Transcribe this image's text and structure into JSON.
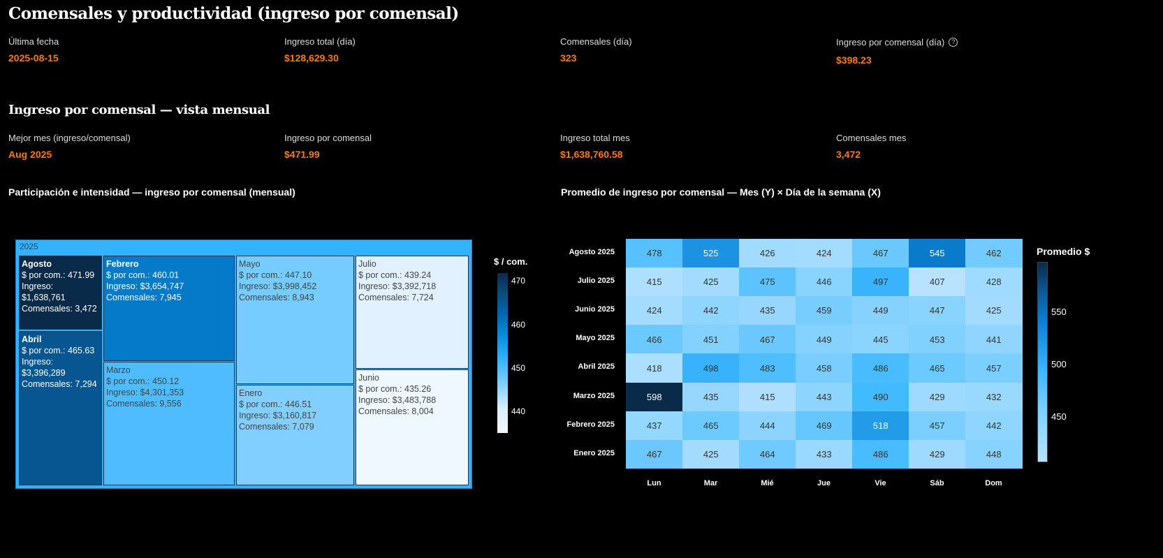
{
  "title": "Comensales y productividad (ingreso por comensal)",
  "kpis_day": [
    {
      "label": "Última fecha",
      "value": "2025-08-15"
    },
    {
      "label": "Ingreso total (día)",
      "value": "$128,629.30"
    },
    {
      "label": "Comensales (día)",
      "value": "323"
    },
    {
      "label": "Ingreso por comensal (día)",
      "value": "$398.23",
      "help": "?"
    }
  ],
  "section_title": "Ingreso por comensal — vista mensual",
  "kpis_month": [
    {
      "label": "Mejor mes (ingreso/comensal)",
      "value": "Aug 2025"
    },
    {
      "label": "Ingreso por comensal",
      "value": "$471.99"
    },
    {
      "label": "Ingreso total mes",
      "value": "$1,638,760.58"
    },
    {
      "label": "Comensales mes",
      "value": "3,472"
    }
  ],
  "colors": {
    "accent": "#ff7a00"
  },
  "chart_data": [
    {
      "type": "treemap",
      "title": "Participación e intensidad — ingreso por comensal (mensual)",
      "root": "2025",
      "colorbar_title": "$ / com.",
      "colorbar_ticks": [
        470,
        460,
        450,
        440
      ],
      "crange": [
        435.26,
        471.99
      ],
      "tiles": [
        {
          "name": "Agosto",
          "per": "$ por com.: 471.99",
          "ing": "Ingreso: $1,638,761",
          "com": "Comensales: 3,472",
          "value": 471.99
        },
        {
          "name": "Abril",
          "per": "$ por com.: 465.63",
          "ing": "Ingreso: $3,396,289",
          "com": "Comensales: 7,294",
          "value": 465.63
        },
        {
          "name": "Febrero",
          "per": "$ por com.: 460.01",
          "ing": "Ingreso: $3,654,747",
          "com": "Comensales: 7,945",
          "value": 460.01
        },
        {
          "name": "Marzo",
          "per": "$ por com.: 450.12",
          "ing": "Ingreso: $4,301,353",
          "com": "Comensales: 9,556",
          "value": 450.12
        },
        {
          "name": "Mayo",
          "per": "$ por com.: 447.10",
          "ing": "Ingreso: $3,998,452",
          "com": "Comensales: 8,943",
          "value": 447.1
        },
        {
          "name": "Enero",
          "per": "$ por com.: 446.51",
          "ing": "Ingreso: $3,160,817",
          "com": "Comensales: 7,079",
          "value": 446.51
        },
        {
          "name": "Julio",
          "per": "$ por com.: 439.24",
          "ing": "Ingreso: $3,392,718",
          "com": "Comensales: 7,724",
          "value": 439.24
        },
        {
          "name": "Junio",
          "per": "$ por com.: 435.26",
          "ing": "Ingreso: $3,483,788",
          "com": "Comensales: 8,004",
          "value": 435.26
        }
      ]
    },
    {
      "type": "heatmap",
      "title": "Promedio de ingreso por comensal — Mes (Y) × Día de la semana (X)",
      "colorbar_title": "Promedio $",
      "colorbar_ticks": [
        550,
        500,
        450
      ],
      "x": [
        "Lun",
        "Mar",
        "Mié",
        "Jue",
        "Vie",
        "Sáb",
        "Dom"
      ],
      "y": [
        "Agosto 2025",
        "Julio 2025",
        "Junio 2025",
        "Mayo 2025",
        "Abril 2025",
        "Marzo 2025",
        "Febrero 2025",
        "Enero 2025"
      ],
      "z": [
        [
          478,
          525,
          426,
          424,
          467,
          545,
          462
        ],
        [
          415,
          425,
          475,
          446,
          497,
          407,
          428
        ],
        [
          424,
          442,
          435,
          459,
          449,
          447,
          425
        ],
        [
          466,
          451,
          467,
          449,
          445,
          453,
          441
        ],
        [
          418,
          498,
          483,
          458,
          486,
          465,
          457
        ],
        [
          598,
          435,
          415,
          443,
          490,
          429,
          432
        ],
        [
          437,
          465,
          444,
          469,
          518,
          457,
          442
        ],
        [
          467,
          425,
          464,
          433,
          486,
          429,
          448
        ]
      ],
      "zrange": [
        407,
        598
      ]
    }
  ]
}
